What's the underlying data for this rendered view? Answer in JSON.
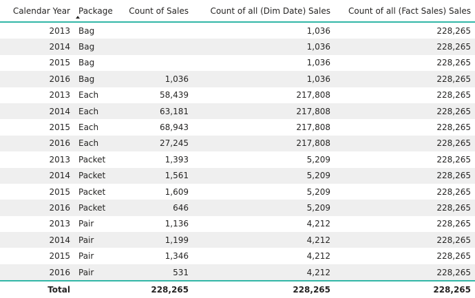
{
  "table": {
    "headers": [
      "Calendar Year",
      "Package",
      "Count of Sales",
      "Count of all (Dim Date) Sales",
      "Count of all (Fact Sales) Sales"
    ],
    "rows": [
      [
        "2013",
        "Bag",
        "",
        "1,036",
        "228,265"
      ],
      [
        "2014",
        "Bag",
        "",
        "1,036",
        "228,265"
      ],
      [
        "2015",
        "Bag",
        "",
        "1,036",
        "228,265"
      ],
      [
        "2016",
        "Bag",
        "1,036",
        "1,036",
        "228,265"
      ],
      [
        "2013",
        "Each",
        "58,439",
        "217,808",
        "228,265"
      ],
      [
        "2014",
        "Each",
        "63,181",
        "217,808",
        "228,265"
      ],
      [
        "2015",
        "Each",
        "68,943",
        "217,808",
        "228,265"
      ],
      [
        "2016",
        "Each",
        "27,245",
        "217,808",
        "228,265"
      ],
      [
        "2013",
        "Packet",
        "1,393",
        "5,209",
        "228,265"
      ],
      [
        "2014",
        "Packet",
        "1,561",
        "5,209",
        "228,265"
      ],
      [
        "2015",
        "Packet",
        "1,609",
        "5,209",
        "228,265"
      ],
      [
        "2016",
        "Packet",
        "646",
        "5,209",
        "228,265"
      ],
      [
        "2013",
        "Pair",
        "1,136",
        "4,212",
        "228,265"
      ],
      [
        "2014",
        "Pair",
        "1,199",
        "4,212",
        "228,265"
      ],
      [
        "2015",
        "Pair",
        "1,346",
        "4,212",
        "228,265"
      ],
      [
        "2016",
        "Pair",
        "531",
        "4,212",
        "228,265"
      ]
    ],
    "total": [
      "Total",
      "",
      "228,265",
      "228,265",
      "228,265"
    ],
    "sort_icon": "sort-ascending-icon",
    "colors": {
      "accent": "#31b6a6",
      "stripe": "#efefef",
      "text": "#252423"
    }
  }
}
